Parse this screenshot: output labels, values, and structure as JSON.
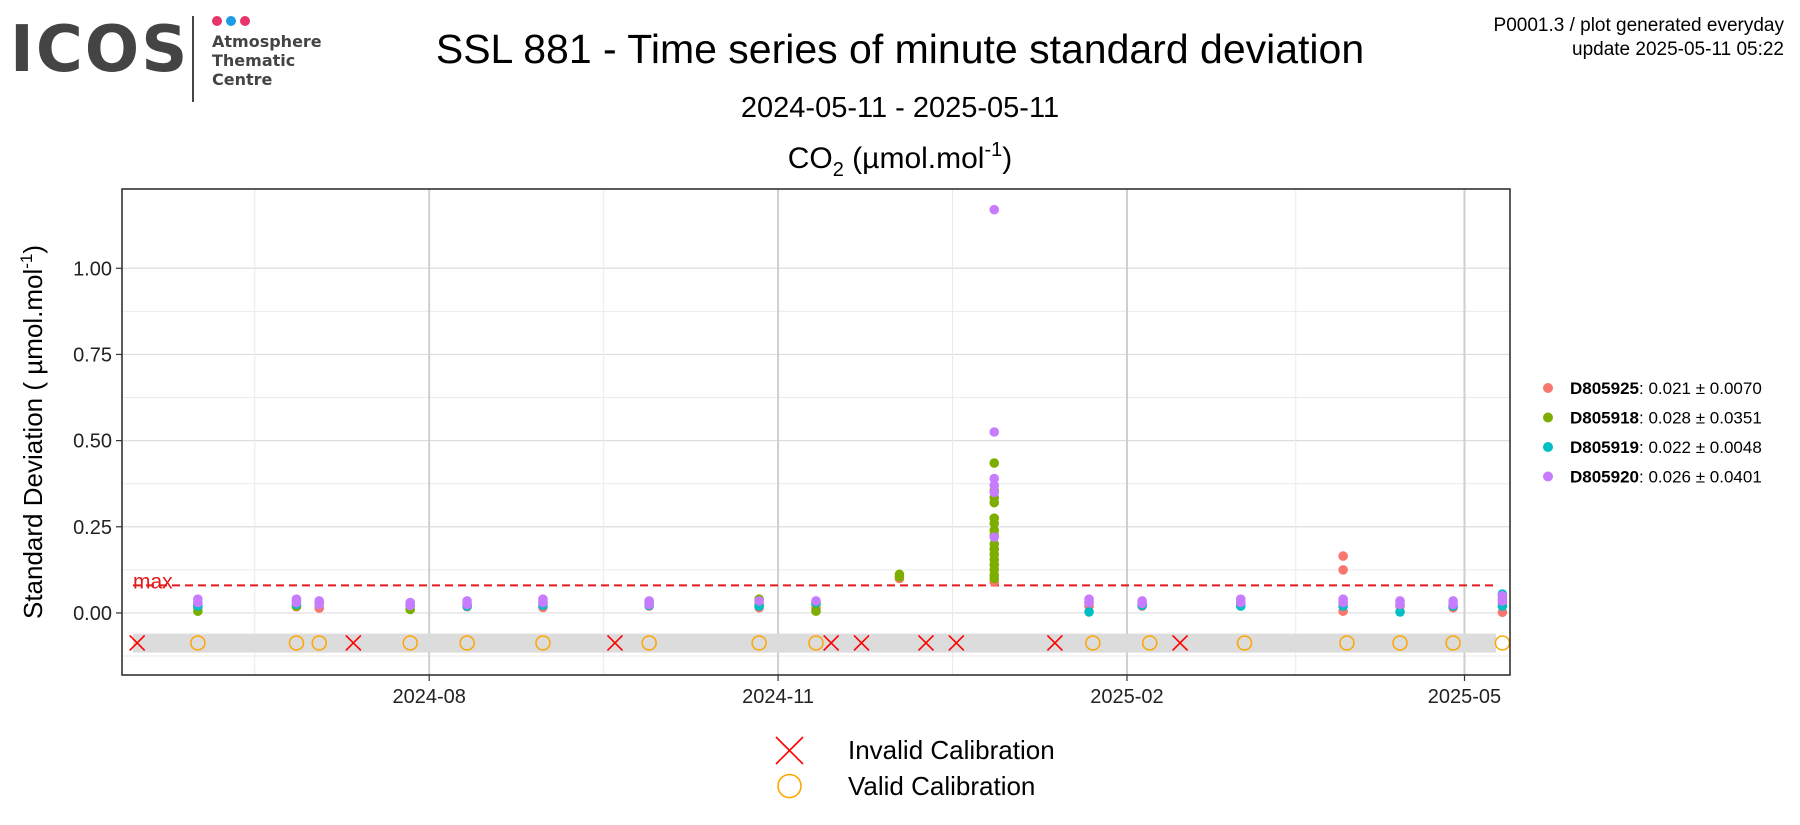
{
  "logo": {
    "wordmark": "ICOS",
    "line1": "Atmosphere",
    "line2": "Thematic",
    "line3": "Centre",
    "dot_colors": [
      "#e8336b",
      "#1e9be6",
      "#e8336b"
    ]
  },
  "header": {
    "title": "SSL 881 - Time series of minute standard deviation",
    "subtitle": "2024-05-11 - 2025-05-11",
    "meta_line1": "P0001.3 / plot generated everyday",
    "meta_line2": "update  2025-05-11 05:22"
  },
  "chart_data": {
    "type": "scatter",
    "title_species": "CO",
    "title_sub": "2",
    "title_units": "(µmol.mol",
    "title_sup": "-1",
    "title_close": ")",
    "ylabel": "Standard Deviation ( µmol.mol",
    "ylabel_sup": "-1",
    "ylabel_close": ")",
    "x_range": [
      "2024-05-12",
      "2025-05-13"
    ],
    "ylim": [
      -0.18,
      1.23
    ],
    "x_ticks": [
      {
        "date": "2024-08-01",
        "label": "2024-08"
      },
      {
        "date": "2024-11-01",
        "label": "2024-11"
      },
      {
        "date": "2025-02-01",
        "label": "2025-02"
      },
      {
        "date": "2025-05-01",
        "label": "2025-05"
      }
    ],
    "y_ticks": [
      0.0,
      0.25,
      0.5,
      0.75,
      1.0
    ],
    "y_tick_labels": [
      "0.00",
      "0.25",
      "0.50",
      "0.75",
      "1.00"
    ],
    "grid": true,
    "max_line": {
      "value": 0.08,
      "label": "max",
      "color": "#e41a1c"
    },
    "calibration_band": {
      "ymin": -0.115,
      "ymax": -0.06,
      "y": -0.087,
      "color": "#dcdcdc"
    },
    "series": [
      {
        "name": "D805925",
        "stats": ": 0.021 ± 0.0070",
        "color": "#f8766d",
        "points": [
          [
            "2024-06-01",
            0.015
          ],
          [
            "2024-06-27",
            0.018
          ],
          [
            "2024-07-03",
            0.014
          ],
          [
            "2024-07-27",
            0.02
          ],
          [
            "2024-08-11",
            0.018
          ],
          [
            "2024-08-31",
            0.016
          ],
          [
            "2024-09-28",
            0.02
          ],
          [
            "2024-10-27",
            0.015
          ],
          [
            "2024-11-11",
            0.012
          ],
          [
            "2024-12-03",
            0.1
          ],
          [
            "2024-12-28",
            0.09
          ],
          [
            "2025-01-22",
            0.02
          ],
          [
            "2025-02-05",
            0.02
          ],
          [
            "2025-03-03",
            0.025
          ],
          [
            "2025-03-30",
            0.165
          ],
          [
            "2025-03-30",
            0.125
          ],
          [
            "2025-03-30",
            0.005
          ],
          [
            "2025-04-14",
            0.02
          ],
          [
            "2025-04-28",
            0.015
          ],
          [
            "2025-05-11",
            0.002
          ],
          [
            "2025-05-11",
            0.03
          ]
        ]
      },
      {
        "name": "D805918",
        "stats": ": 0.028 ± 0.0351",
        "color": "#7cae00",
        "points": [
          [
            "2024-06-01",
            0.005
          ],
          [
            "2024-06-01",
            0.025
          ],
          [
            "2024-06-27",
            0.035
          ],
          [
            "2024-06-27",
            0.02
          ],
          [
            "2024-07-03",
            0.03
          ],
          [
            "2024-07-27",
            0.01
          ],
          [
            "2024-07-27",
            0.03
          ],
          [
            "2024-08-11",
            0.025
          ],
          [
            "2024-08-31",
            0.03
          ],
          [
            "2024-09-28",
            0.03
          ],
          [
            "2024-10-27",
            0.04
          ],
          [
            "2024-10-27",
            0.025
          ],
          [
            "2024-11-11",
            0.005
          ],
          [
            "2024-11-11",
            0.025
          ],
          [
            "2024-12-03",
            0.112
          ],
          [
            "2024-12-03",
            0.105
          ],
          [
            "2024-12-28",
            0.435
          ],
          [
            "2024-12-28",
            0.355
          ],
          [
            "2024-12-28",
            0.335
          ],
          [
            "2024-12-28",
            0.32
          ],
          [
            "2024-12-28",
            0.275
          ],
          [
            "2024-12-28",
            0.26
          ],
          [
            "2024-12-28",
            0.24
          ],
          [
            "2024-12-28",
            0.225
          ],
          [
            "2024-12-28",
            0.2
          ],
          [
            "2024-12-28",
            0.185
          ],
          [
            "2024-12-28",
            0.17
          ],
          [
            "2024-12-28",
            0.155
          ],
          [
            "2024-12-28",
            0.14
          ],
          [
            "2024-12-28",
            0.125
          ],
          [
            "2024-12-28",
            0.11
          ],
          [
            "2024-12-28",
            0.1
          ],
          [
            "2025-01-22",
            0.03
          ],
          [
            "2025-02-05",
            0.025
          ],
          [
            "2025-03-03",
            0.03
          ],
          [
            "2025-03-30",
            0.03
          ],
          [
            "2025-04-14",
            0.025
          ],
          [
            "2025-04-28",
            0.02
          ],
          [
            "2025-05-11",
            0.04
          ]
        ]
      },
      {
        "name": "D805919",
        "stats": ": 0.022 ± 0.0048",
        "color": "#00bfc4",
        "points": [
          [
            "2024-06-01",
            0.02
          ],
          [
            "2024-06-27",
            0.025
          ],
          [
            "2024-07-27",
            0.022
          ],
          [
            "2024-08-11",
            0.02
          ],
          [
            "2024-08-31",
            0.022
          ],
          [
            "2024-09-28",
            0.022
          ],
          [
            "2024-10-27",
            0.02
          ],
          [
            "2024-11-11",
            0.03
          ],
          [
            "2025-01-22",
            0.003
          ],
          [
            "2025-02-05",
            0.022
          ],
          [
            "2025-03-03",
            0.02
          ],
          [
            "2025-03-30",
            0.02
          ],
          [
            "2025-04-14",
            0.003
          ],
          [
            "2025-04-28",
            0.02
          ],
          [
            "2025-05-11",
            0.055
          ],
          [
            "2025-05-11",
            0.02
          ]
        ]
      },
      {
        "name": "D805920",
        "stats": ": 0.026 ± 0.0401",
        "color": "#c77cff",
        "points": [
          [
            "2024-06-01",
            0.04
          ],
          [
            "2024-06-01",
            0.03
          ],
          [
            "2024-06-27",
            0.03
          ],
          [
            "2024-06-27",
            0.04
          ],
          [
            "2024-07-03",
            0.035
          ],
          [
            "2024-07-03",
            0.025
          ],
          [
            "2024-07-27",
            0.03
          ],
          [
            "2024-07-27",
            0.022
          ],
          [
            "2024-08-11",
            0.035
          ],
          [
            "2024-08-11",
            0.025
          ],
          [
            "2024-08-31",
            0.04
          ],
          [
            "2024-08-31",
            0.03
          ],
          [
            "2024-09-28",
            0.035
          ],
          [
            "2024-09-28",
            0.025
          ],
          [
            "2024-10-27",
            0.035
          ],
          [
            "2024-11-11",
            0.035
          ],
          [
            "2024-12-28",
            1.17
          ],
          [
            "2024-12-28",
            0.525
          ],
          [
            "2024-12-28",
            0.39
          ],
          [
            "2024-12-28",
            0.37
          ],
          [
            "2024-12-28",
            0.35
          ],
          [
            "2024-12-28",
            0.22
          ],
          [
            "2025-01-22",
            0.04
          ],
          [
            "2025-01-22",
            0.03
          ],
          [
            "2025-02-05",
            0.035
          ],
          [
            "2025-02-05",
            0.028
          ],
          [
            "2025-03-03",
            0.04
          ],
          [
            "2025-03-03",
            0.03
          ],
          [
            "2025-03-30",
            0.04
          ],
          [
            "2025-03-30",
            0.03
          ],
          [
            "2025-04-14",
            0.035
          ],
          [
            "2025-04-14",
            0.025
          ],
          [
            "2025-04-28",
            0.035
          ],
          [
            "2025-04-28",
            0.025
          ],
          [
            "2025-05-11",
            0.05
          ],
          [
            "2025-05-11",
            0.035
          ]
        ]
      }
    ],
    "calibrations": {
      "invalid": {
        "label": "Invalid Calibration",
        "color": "#ff0000",
        "dates": [
          "2024-05-16",
          "2024-07-12",
          "2024-09-19",
          "2024-11-15",
          "2024-11-23",
          "2024-12-10",
          "2024-12-18",
          "2025-01-13",
          "2025-02-15"
        ]
      },
      "valid": {
        "label": "Valid Calibration",
        "color": "#ffa500",
        "dates": [
          "2024-06-01",
          "2024-06-27",
          "2024-07-03",
          "2024-07-27",
          "2024-08-11",
          "2024-08-31",
          "2024-09-28",
          "2024-10-27",
          "2024-11-11",
          "2025-01-23",
          "2025-02-07",
          "2025-03-04",
          "2025-03-31",
          "2025-04-14",
          "2025-04-28",
          "2025-05-11"
        ]
      }
    }
  }
}
